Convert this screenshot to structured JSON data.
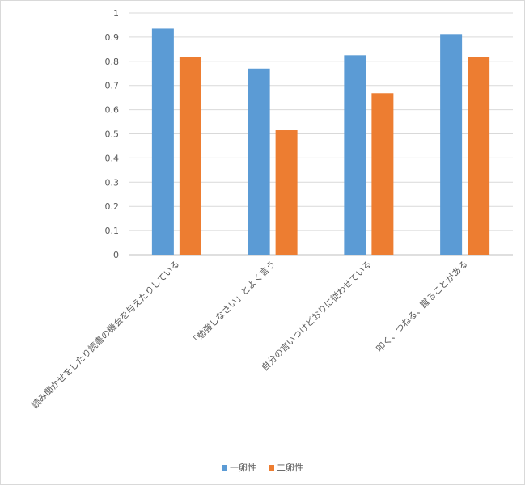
{
  "chart_data": {
    "type": "bar",
    "title": "",
    "xlabel": "",
    "ylabel": "",
    "ylim": [
      0,
      1
    ],
    "yticks": [
      "0",
      "0.1",
      "0.2",
      "0.3",
      "0.4",
      "0.5",
      "0.6",
      "0.7",
      "0.8",
      "0.9",
      "1"
    ],
    "categories": [
      "読み聞かせをしたり読書の機会を与えたりしている",
      "「勉強しなさい」とよく言う",
      "自分の言いつけどおりに従わせている",
      "叩く、つねる、蹴ることがある"
    ],
    "series": [
      {
        "name": "一卵性",
        "color": "#5b9bd5",
        "values": [
          0.935,
          0.77,
          0.825,
          0.912
        ]
      },
      {
        "name": "二卵性",
        "color": "#ed7d31",
        "values": [
          0.817,
          0.515,
          0.668,
          0.817
        ]
      }
    ],
    "grid": true,
    "legend_position": "bottom"
  }
}
